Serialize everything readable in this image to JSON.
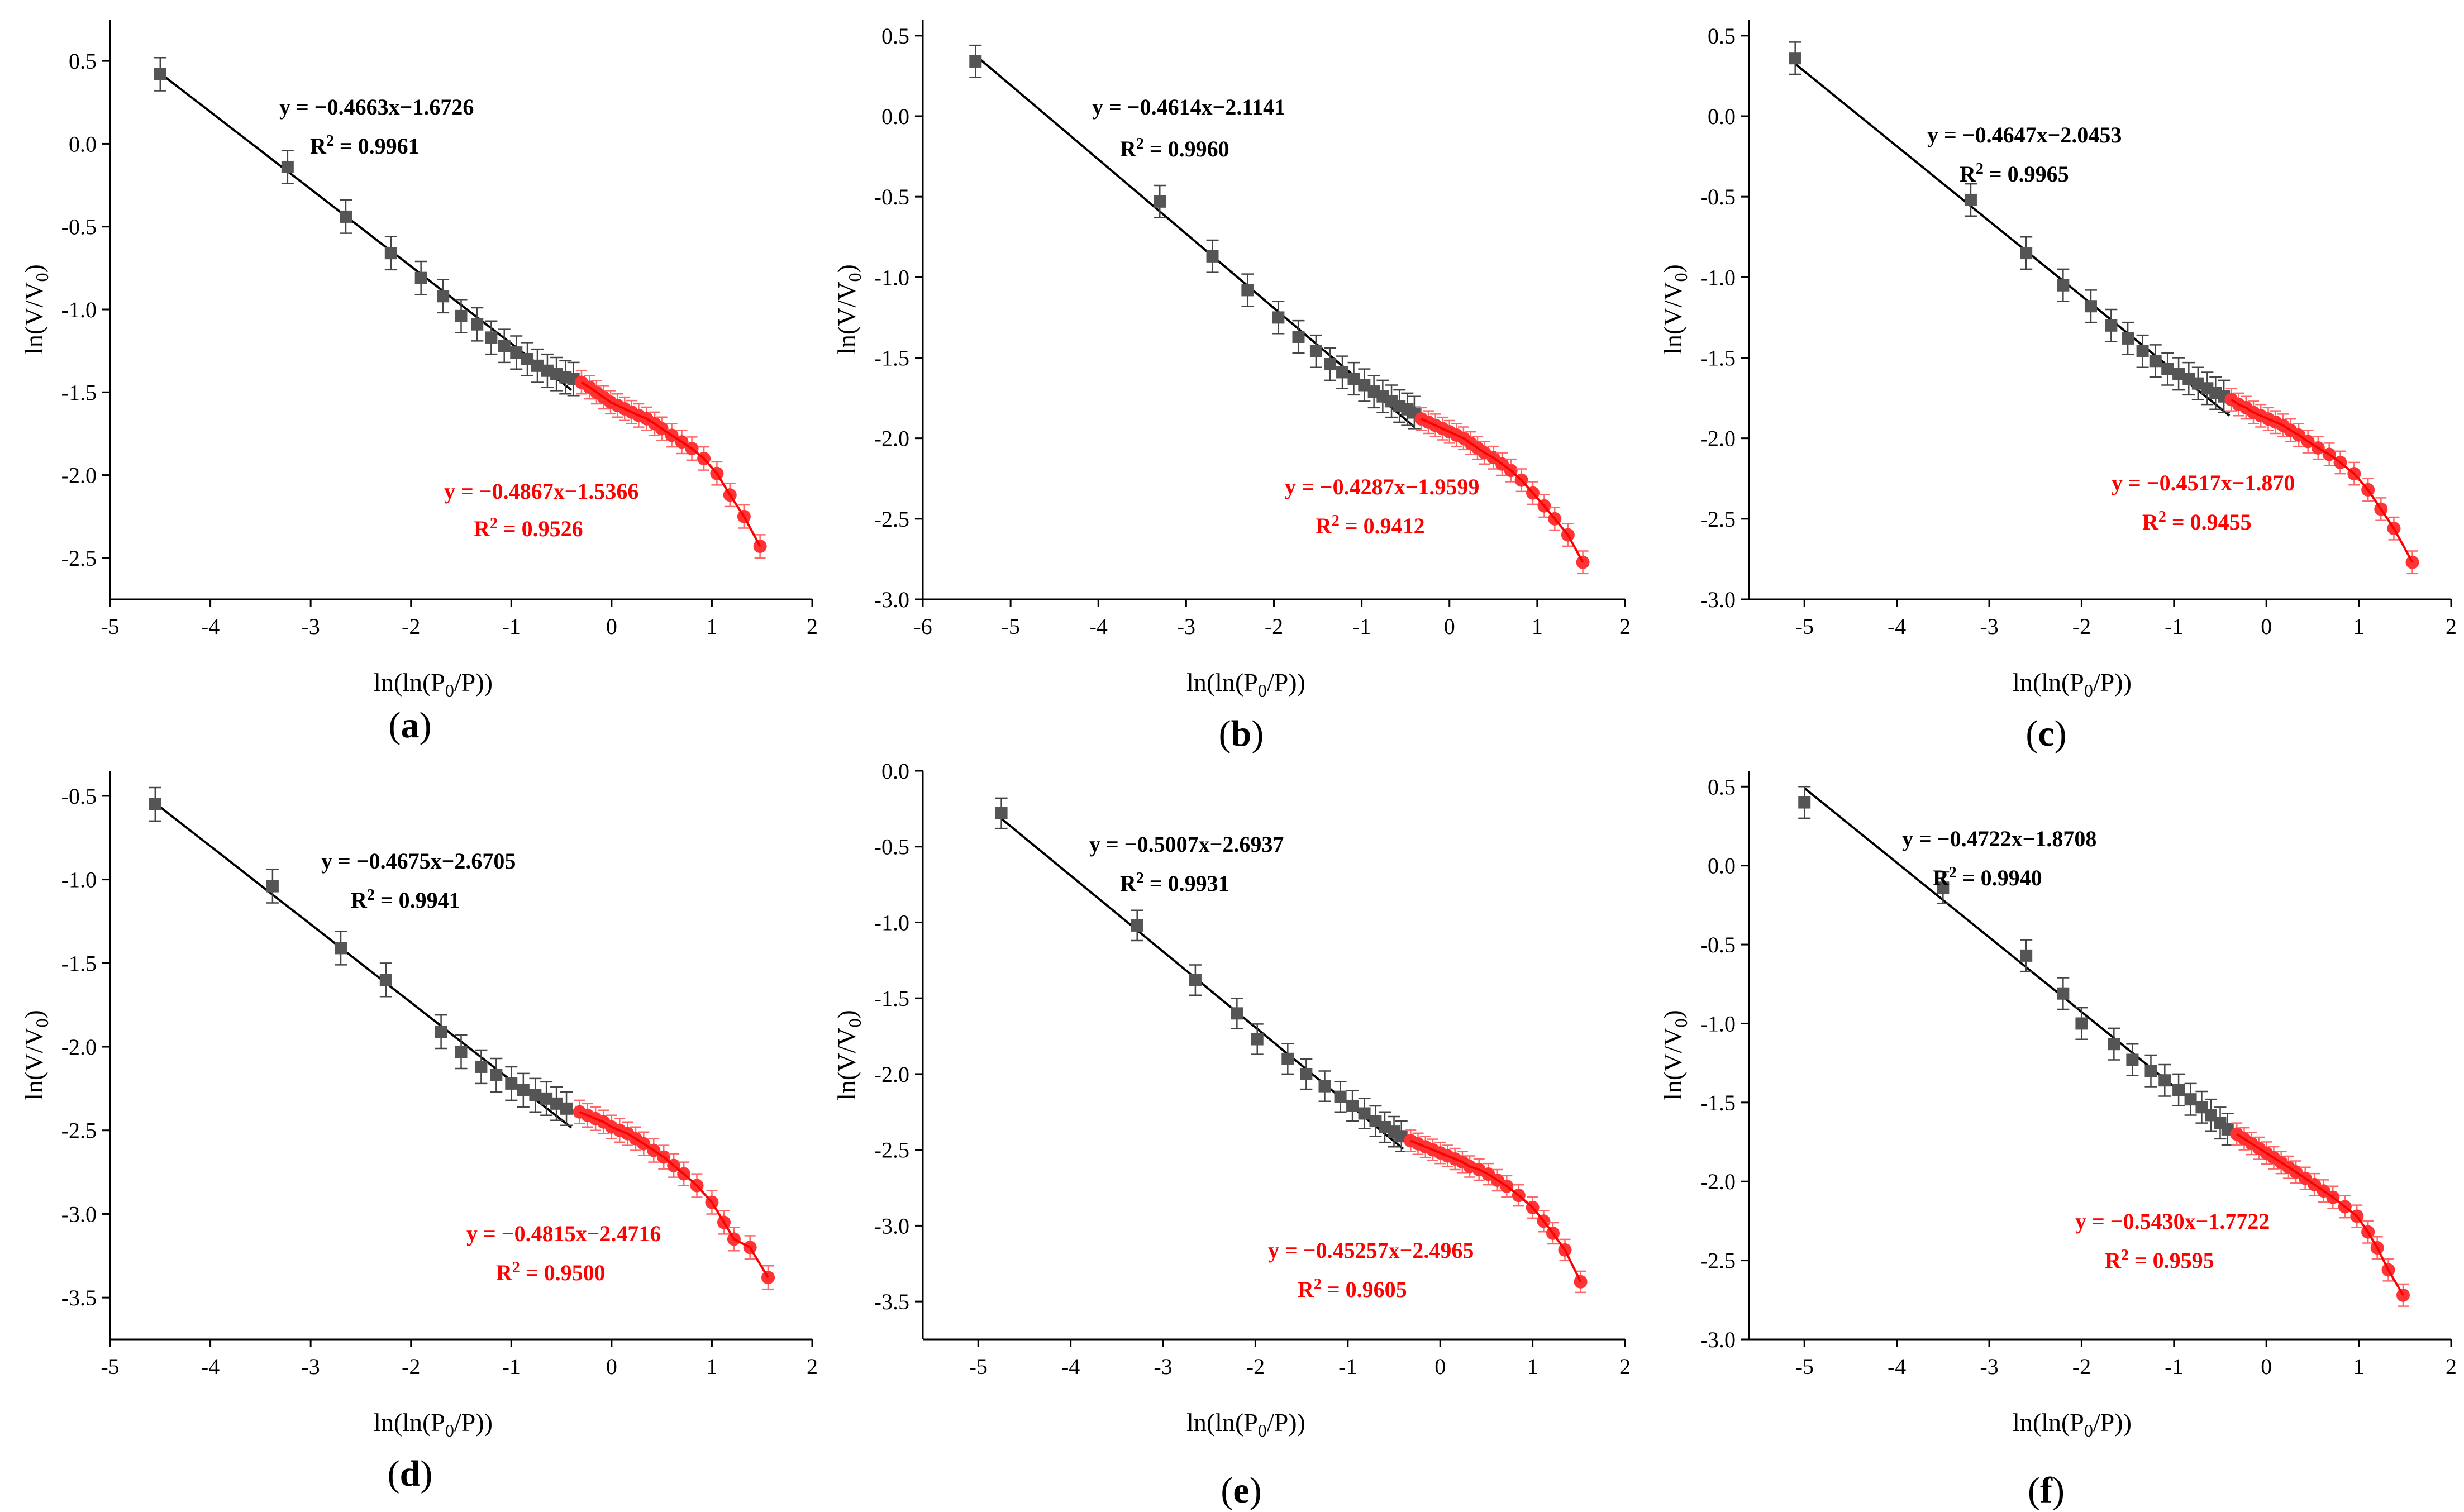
{
  "figure": {
    "colors": {
      "black_series": "#555555",
      "black_line": "#000000",
      "red_series": "#ff3333",
      "red_line": "#ff0000",
      "black_err": "#444444",
      "red_err": "#ff6666"
    },
    "ylabel": [
      "ln(V/V",
      "0",
      ")"
    ],
    "xlabel": [
      "ln(ln(P",
      "0",
      "/P))"
    ]
  },
  "chart_data": [
    {
      "type": "scatter",
      "panel_label": [
        "(",
        "a",
        ")"
      ],
      "xlim": [
        -5,
        2
      ],
      "ylim": [
        -2.75,
        0.75
      ],
      "xticks": [
        -5,
        -4,
        -3,
        -2,
        -1,
        0,
        1,
        2
      ],
      "yticks": [
        0.5,
        0.0,
        -0.5,
        -1.0,
        -1.5,
        -2.0,
        -2.5
      ],
      "tick_labels_x": [
        "-5",
        "-4",
        "-3",
        "-2",
        "-1",
        "0",
        "1",
        "2"
      ],
      "tick_labels_y": [
        "0.5",
        "0.0",
        "-0.5",
        "-1.0",
        "-1.5",
        "-2.0",
        "-2.5"
      ],
      "fit1": {
        "equation": "y = −0.4663x−1.6726",
        "r2": [
          "R",
          "2",
          " = 0.9961"
        ],
        "slope": -0.4663,
        "intercept": -1.6726,
        "x_range": [
          -4.5,
          -0.4
        ]
      },
      "fit2": {
        "equation": "y = −0.4867x−1.5366",
        "r2": [
          "R",
          "2",
          " = 0.9526"
        ],
        "slope": -0.4867,
        "intercept": -1.5366,
        "x_range": [
          -0.4,
          1.5
        ]
      },
      "series_black": {
        "x": [
          -4.5,
          -3.23,
          -2.65,
          -2.2,
          -1.9,
          -1.68,
          -1.5,
          -1.34,
          -1.2,
          -1.07,
          -0.95,
          -0.84,
          -0.74,
          -0.64,
          -0.55,
          -0.46,
          -0.38
        ],
        "y": [
          0.42,
          -0.14,
          -0.44,
          -0.66,
          -0.81,
          -0.92,
          -1.04,
          -1.09,
          -1.17,
          -1.22,
          -1.26,
          -1.3,
          -1.34,
          -1.37,
          -1.39,
          -1.41,
          -1.42
        ],
        "err": 0.1
      },
      "series_red": {
        "x": [
          -0.3,
          -0.22,
          -0.15,
          -0.08,
          -0.01,
          0.06,
          0.13,
          0.2,
          0.27,
          0.35,
          0.43,
          0.5,
          0.6,
          0.7,
          0.8,
          0.92,
          1.05,
          1.18,
          1.32,
          1.48
        ],
        "y": [
          -1.44,
          -1.47,
          -1.5,
          -1.53,
          -1.56,
          -1.58,
          -1.6,
          -1.62,
          -1.64,
          -1.66,
          -1.69,
          -1.72,
          -1.76,
          -1.8,
          -1.84,
          -1.9,
          -1.99,
          -2.12,
          -2.25,
          -2.43
        ],
        "err": 0.07
      }
    },
    {
      "type": "scatter",
      "panel_label": [
        "(",
        "b",
        ")"
      ],
      "xlim": [
        -6,
        2
      ],
      "ylim": [
        -3.0,
        0.6
      ],
      "xticks": [
        -6,
        -5,
        -4,
        -3,
        -2,
        -1,
        0,
        1,
        2
      ],
      "yticks": [
        0.5,
        0.0,
        -0.5,
        -1.0,
        -1.5,
        -2.0,
        -2.5,
        -3.0
      ],
      "tick_labels_x": [
        "-6",
        "-5",
        "-4",
        "-3",
        "-2",
        "-1",
        "0",
        "1",
        "2"
      ],
      "tick_labels_y": [
        "0.5",
        "0.0",
        "-0.5",
        "-1.0",
        "-1.5",
        "-2.0",
        "-2.5",
        "-3.0"
      ],
      "fit1": {
        "equation": "y = −0.4614x−2.1141",
        "r2": [
          "R",
          "2",
          " = 0.9960"
        ],
        "slope": -0.4614,
        "intercept": -2.1141,
        "x_range": [
          -5.4,
          -0.4
        ]
      },
      "fit2": {
        "equation": "y = −0.4287x−1.9599",
        "r2": [
          "R",
          "2",
          " = 0.9412"
        ],
        "slope": -0.4287,
        "intercept": -1.9599,
        "x_range": [
          -0.4,
          1.5
        ]
      },
      "series_black": {
        "x": [
          -5.4,
          -3.3,
          -2.7,
          -2.3,
          -1.95,
          -1.72,
          -1.52,
          -1.36,
          -1.22,
          -1.09,
          -0.97,
          -0.86,
          -0.76,
          -0.66,
          -0.57,
          -0.48,
          -0.4
        ],
        "y": [
          0.34,
          -0.53,
          -0.87,
          -1.08,
          -1.25,
          -1.37,
          -1.46,
          -1.54,
          -1.59,
          -1.63,
          -1.67,
          -1.71,
          -1.74,
          -1.77,
          -1.8,
          -1.82,
          -1.84
        ],
        "err": 0.1
      },
      "series_red": {
        "x": [
          -0.32,
          -0.24,
          -0.16,
          -0.08,
          0.0,
          0.08,
          0.16,
          0.24,
          0.32,
          0.4,
          0.5,
          0.6,
          0.7,
          0.82,
          0.95,
          1.08,
          1.2,
          1.35,
          1.52
        ],
        "y": [
          -1.88,
          -1.9,
          -1.92,
          -1.94,
          -1.96,
          -1.98,
          -2.0,
          -2.03,
          -2.06,
          -2.09,
          -2.12,
          -2.16,
          -2.2,
          -2.26,
          -2.34,
          -2.42,
          -2.5,
          -2.6,
          -2.77
        ],
        "err": 0.07
      }
    },
    {
      "type": "scatter",
      "panel_label": [
        "(",
        "c",
        ")"
      ],
      "xlim": [
        -5.6,
        2
      ],
      "ylim": [
        -3.0,
        0.6
      ],
      "xticks": [
        -5,
        -4,
        -3,
        -2,
        -1,
        0,
        1,
        2
      ],
      "yticks": [
        0.5,
        0.0,
        -0.5,
        -1.0,
        -1.5,
        -2.0,
        -2.5,
        -3.0
      ],
      "tick_labels_x": [
        "-5",
        "-4",
        "-3",
        "-2",
        "-1",
        "0",
        "1",
        "2"
      ],
      "tick_labels_y": [
        "0.5",
        "0.0",
        "-0.5",
        "-1.0",
        "-1.5",
        "-2.0",
        "-2.5",
        "-3.0"
      ],
      "fit1": {
        "equation": "y = −0.4647x−2.0453",
        "r2": [
          "R",
          "2",
          " = 0.9965"
        ],
        "slope": -0.4647,
        "intercept": -2.0453,
        "x_range": [
          -5.1,
          -0.4
        ]
      },
      "fit2": {
        "equation": "y = −0.4517x−1.870",
        "r2": [
          "R",
          "2",
          " = 0.9455"
        ],
        "slope": -0.4517,
        "intercept": -1.87,
        "x_range": [
          -0.4,
          1.6
        ]
      },
      "series_black": {
        "x": [
          -5.1,
          -3.2,
          -2.6,
          -2.2,
          -1.9,
          -1.68,
          -1.5,
          -1.34,
          -1.2,
          -1.07,
          -0.95,
          -0.84,
          -0.74,
          -0.64,
          -0.55,
          -0.46
        ],
        "y": [
          0.36,
          -0.52,
          -0.85,
          -1.05,
          -1.18,
          -1.3,
          -1.38,
          -1.46,
          -1.52,
          -1.57,
          -1.6,
          -1.63,
          -1.66,
          -1.69,
          -1.72,
          -1.74
        ],
        "err": 0.1
      },
      "series_red": {
        "x": [
          -0.38,
          -0.3,
          -0.22,
          -0.14,
          -0.06,
          0.02,
          0.1,
          0.18,
          0.26,
          0.35,
          0.45,
          0.56,
          0.68,
          0.8,
          0.95,
          1.1,
          1.24,
          1.38,
          1.58
        ],
        "y": [
          -1.76,
          -1.79,
          -1.81,
          -1.84,
          -1.86,
          -1.88,
          -1.9,
          -1.92,
          -1.95,
          -1.98,
          -2.02,
          -2.06,
          -2.1,
          -2.15,
          -2.22,
          -2.32,
          -2.44,
          -2.56,
          -2.77
        ],
        "err": 0.07
      }
    },
    {
      "type": "scatter",
      "panel_label": [
        "(",
        "d",
        ")"
      ],
      "xlim": [
        -5,
        2
      ],
      "ylim": [
        -3.75,
        -0.35
      ],
      "xticks": [
        -5,
        -4,
        -3,
        -2,
        -1,
        0,
        1,
        2
      ],
      "yticks": [
        -0.5,
        -1.0,
        -1.5,
        -2.0,
        -2.5,
        -3.0,
        -3.5
      ],
      "tick_labels_x": [
        "-5",
        "-4",
        "-3",
        "-2",
        "-1",
        "0",
        "1",
        "2"
      ],
      "tick_labels_y": [
        "-0.5",
        "-1.0",
        "-1.5",
        "-2.0",
        "-2.5",
        "-3.0",
        "-3.5"
      ],
      "fit1": {
        "equation": "y = −0.4675x−2.6705",
        "r2": [
          "R",
          "2",
          " = 0.9941"
        ],
        "slope": -0.4675,
        "intercept": -2.6705,
        "x_range": [
          -4.55,
          -0.4
        ]
      },
      "fit2": {
        "equation": "y = −0.4815x−2.4716",
        "r2": [
          "R",
          "2",
          " = 0.9500"
        ],
        "slope": -0.4815,
        "intercept": -2.4716,
        "x_range": [
          -0.4,
          1.5
        ]
      },
      "series_black": {
        "x": [
          -4.55,
          -3.38,
          -2.7,
          -2.25,
          -1.7,
          -1.5,
          -1.3,
          -1.15,
          -1.0,
          -0.88,
          -0.76,
          -0.65,
          -0.55,
          -0.45
        ],
        "y": [
          -0.55,
          -1.04,
          -1.41,
          -1.6,
          -1.91,
          -2.03,
          -2.12,
          -2.17,
          -2.22,
          -2.26,
          -2.29,
          -2.31,
          -2.34,
          -2.37
        ],
        "err": 0.1
      },
      "series_red": {
        "x": [
          -0.32,
          -0.24,
          -0.16,
          -0.08,
          0.0,
          0.08,
          0.16,
          0.24,
          0.32,
          0.42,
          0.52,
          0.62,
          0.72,
          0.85,
          1.0,
          1.12,
          1.22,
          1.38,
          1.56
        ],
        "y": [
          -2.39,
          -2.41,
          -2.43,
          -2.45,
          -2.48,
          -2.5,
          -2.52,
          -2.55,
          -2.58,
          -2.62,
          -2.66,
          -2.71,
          -2.76,
          -2.83,
          -2.93,
          -3.05,
          -3.15,
          -3.2,
          -3.38
        ],
        "err": 0.07
      }
    },
    {
      "type": "scatter",
      "panel_label": [
        "(",
        "e",
        ")"
      ],
      "xlim": [
        -5.6,
        2
      ],
      "ylim": [
        -3.75,
        0.0
      ],
      "xticks": [
        -5,
        -4,
        -3,
        -2,
        -1,
        0,
        1,
        2
      ],
      "yticks": [
        0.0,
        -0.5,
        -1.0,
        -1.5,
        -2.0,
        -2.5,
        -3.0,
        -3.5
      ],
      "tick_labels_x": [
        "-5",
        "-4",
        "-3",
        "-2",
        "-1",
        "0",
        "1",
        "2"
      ],
      "tick_labels_y": [
        "0.0",
        "-0.5",
        "-1.0",
        "-1.5",
        "-2.0",
        "-2.5",
        "-3.0",
        "-3.5"
      ],
      "fit1": {
        "equation": "y = −0.5007x−2.6937",
        "r2": [
          "R",
          "2",
          " = 0.9931"
        ],
        "slope": -0.5007,
        "intercept": -2.6937,
        "x_range": [
          -4.75,
          -0.4
        ]
      },
      "fit2": {
        "equation": "y = −0.45257x−2.4965",
        "r2": [
          "R",
          "2",
          " = 0.9605"
        ],
        "slope": -0.45257,
        "intercept": -2.4965,
        "x_range": [
          -0.4,
          1.5
        ]
      },
      "series_black": {
        "x": [
          -4.75,
          -3.28,
          -2.65,
          -2.2,
          -1.98,
          -1.65,
          -1.45,
          -1.25,
          -1.08,
          -0.95,
          -0.82,
          -0.7,
          -0.6,
          -0.5,
          -0.42
        ],
        "y": [
          -0.28,
          -1.02,
          -1.38,
          -1.6,
          -1.77,
          -1.9,
          -2.0,
          -2.08,
          -2.15,
          -2.21,
          -2.26,
          -2.31,
          -2.35,
          -2.38,
          -2.41
        ],
        "err": 0.1
      },
      "series_red": {
        "x": [
          -0.32,
          -0.24,
          -0.16,
          -0.08,
          0.0,
          0.08,
          0.16,
          0.24,
          0.32,
          0.42,
          0.52,
          0.62,
          0.72,
          0.85,
          1.0,
          1.12,
          1.22,
          1.35,
          1.52
        ],
        "y": [
          -2.44,
          -2.46,
          -2.48,
          -2.5,
          -2.52,
          -2.54,
          -2.56,
          -2.58,
          -2.61,
          -2.63,
          -2.66,
          -2.7,
          -2.74,
          -2.8,
          -2.88,
          -2.97,
          -3.05,
          -3.16,
          -3.37
        ],
        "err": 0.07
      }
    },
    {
      "type": "scatter",
      "panel_label": [
        "(",
        "f",
        ")"
      ],
      "xlim": [
        -5.6,
        2
      ],
      "ylim": [
        -3.0,
        0.6
      ],
      "xticks": [
        -5,
        -4,
        -3,
        -2,
        -1,
        0,
        1,
        2
      ],
      "yticks": [
        0.5,
        0.0,
        -0.5,
        -1.0,
        -1.5,
        -2.0,
        -2.5,
        -3.0
      ],
      "tick_labels_x": [
        "-5",
        "-4",
        "-3",
        "-2",
        "-1",
        "0",
        "1",
        "2"
      ],
      "tick_labels_y": [
        "0.5",
        "0.0",
        "-0.5",
        "-1.0",
        "-1.5",
        "-2.0",
        "-2.5",
        "-3.0"
      ],
      "fit1": {
        "equation": "y = −0.4722x−1.8708",
        "r2": [
          "R",
          "2",
          " = 0.9940"
        ],
        "slope": -0.4722,
        "intercept": -1.8708,
        "x_range": [
          -5.0,
          -0.4
        ]
      },
      "fit2": {
        "equation": "y = −0.5430x−1.7722",
        "r2": [
          "R",
          "2",
          " = 0.9595"
        ],
        "slope": -0.543,
        "intercept": -1.7722,
        "x_range": [
          -0.4,
          1.5
        ]
      },
      "series_black": {
        "x": [
          -5.0,
          -3.5,
          -2.6,
          -2.2,
          -2.0,
          -1.65,
          -1.45,
          -1.25,
          -1.1,
          -0.95,
          -0.82,
          -0.7,
          -0.6,
          -0.5,
          -0.42
        ],
        "y": [
          0.4,
          -0.14,
          -0.57,
          -0.81,
          -1.0,
          -1.13,
          -1.23,
          -1.3,
          -1.36,
          -1.42,
          -1.48,
          -1.53,
          -1.58,
          -1.63,
          -1.67
        ],
        "err": 0.1
      },
      "series_red": {
        "x": [
          -0.32,
          -0.24,
          -0.16,
          -0.08,
          0.0,
          0.08,
          0.16,
          0.24,
          0.32,
          0.42,
          0.52,
          0.62,
          0.72,
          0.85,
          0.98,
          1.1,
          1.2,
          1.32,
          1.48
        ],
        "y": [
          -1.7,
          -1.73,
          -1.76,
          -1.79,
          -1.82,
          -1.85,
          -1.88,
          -1.91,
          -1.94,
          -1.98,
          -2.02,
          -2.06,
          -2.1,
          -2.16,
          -2.22,
          -2.32,
          -2.42,
          -2.56,
          -2.72
        ],
        "err": 0.07
      }
    }
  ]
}
